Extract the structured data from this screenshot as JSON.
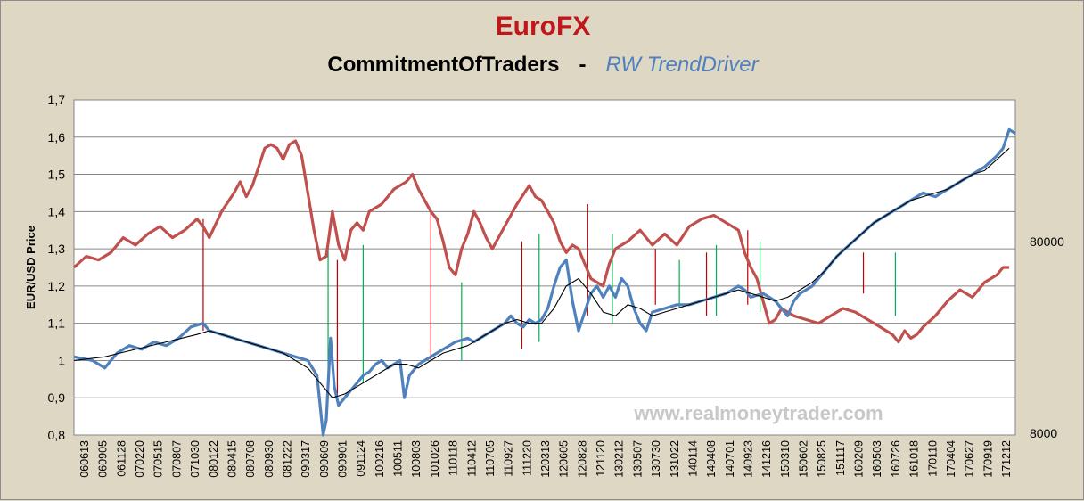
{
  "chart_data": {
    "type": "line",
    "title": "EuroFX",
    "subtitle_left": "CommitmentOfTraders",
    "subtitle_sep": "-",
    "subtitle_right": "RW TrendDriver",
    "ylabel": "EUR/USD Price",
    "watermark": "www.realmoneytrader.com",
    "ylim": [
      0.8,
      1.7
    ],
    "y_ticks": [
      "0,8",
      "0,9",
      "1",
      "1,1",
      "1,2",
      "1,3",
      "1,4",
      "1,5",
      "1,6",
      "1,7"
    ],
    "y2_ticks": [
      "8000",
      "80000"
    ],
    "x_ticks": [
      "060613",
      "060905",
      "061128",
      "070220",
      "070515",
      "070807",
      "071030",
      "080122",
      "080415",
      "080708",
      "080930",
      "081222",
      "090317",
      "090609",
      "090901",
      "091124",
      "100216",
      "100511",
      "100803",
      "101026",
      "110118",
      "110412",
      "110705",
      "110927",
      "111220",
      "120313",
      "120605",
      "120828",
      "121120",
      "130212",
      "130507",
      "130730",
      "131022",
      "140114",
      "140408",
      "140701",
      "140923",
      "141216",
      "150310",
      "150602",
      "150825",
      "151117",
      "160209",
      "160503",
      "160726",
      "161018",
      "170110",
      "170404",
      "170627",
      "170919",
      "171212"
    ],
    "colors": {
      "price": "#4f81bd",
      "cot": "#c0504d",
      "trend": "#000000",
      "sell_signal": "#c00000",
      "buy_signal": "#00b050",
      "grid": "#868686",
      "background": "#ddd7c4"
    },
    "series": [
      {
        "name": "EUR/USD Price",
        "points": [
          [
            0,
            1.01
          ],
          [
            3,
            1.0
          ],
          [
            5,
            0.98
          ],
          [
            7,
            1.02
          ],
          [
            9,
            1.04
          ],
          [
            11,
            1.03
          ],
          [
            13,
            1.05
          ],
          [
            15,
            1.04
          ],
          [
            17,
            1.06
          ],
          [
            19,
            1.09
          ],
          [
            21,
            1.1
          ],
          [
            22,
            1.08
          ],
          [
            24,
            1.07
          ],
          [
            26,
            1.06
          ],
          [
            28,
            1.05
          ],
          [
            30,
            1.04
          ],
          [
            32,
            1.03
          ],
          [
            34,
            1.02
          ],
          [
            36,
            1.01
          ],
          [
            38,
            1.0
          ],
          [
            39.5,
            0.96
          ],
          [
            40.5,
            0.8
          ],
          [
            41,
            0.84
          ],
          [
            41.7,
            1.06
          ],
          [
            42.3,
            0.93
          ],
          [
            43,
            0.88
          ],
          [
            44,
            0.9
          ],
          [
            45,
            0.92
          ],
          [
            46,
            0.94
          ],
          [
            47,
            0.96
          ],
          [
            48,
            0.97
          ],
          [
            49,
            0.99
          ],
          [
            50,
            1.0
          ],
          [
            51,
            0.98
          ],
          [
            52,
            0.99
          ],
          [
            53,
            1.0
          ],
          [
            53.7,
            0.9
          ],
          [
            54.5,
            0.96
          ],
          [
            56,
            0.99
          ],
          [
            58,
            1.01
          ],
          [
            60,
            1.03
          ],
          [
            62,
            1.05
          ],
          [
            64,
            1.06
          ],
          [
            65,
            1.05
          ],
          [
            66,
            1.06
          ],
          [
            68,
            1.08
          ],
          [
            70,
            1.1
          ],
          [
            71,
            1.12
          ],
          [
            72,
            1.1
          ],
          [
            73,
            1.09
          ],
          [
            74,
            1.11
          ],
          [
            75,
            1.1
          ],
          [
            76,
            1.11
          ],
          [
            77,
            1.14
          ],
          [
            78,
            1.2
          ],
          [
            79,
            1.25
          ],
          [
            80,
            1.27
          ],
          [
            81,
            1.16
          ],
          [
            82,
            1.08
          ],
          [
            83,
            1.13
          ],
          [
            84,
            1.18
          ],
          [
            85,
            1.2
          ],
          [
            86,
            1.17
          ],
          [
            87,
            1.2
          ],
          [
            88,
            1.17
          ],
          [
            89,
            1.22
          ],
          [
            90,
            1.2
          ],
          [
            91,
            1.14
          ],
          [
            92,
            1.1
          ],
          [
            93,
            1.08
          ],
          [
            94,
            1.13
          ],
          [
            96,
            1.14
          ],
          [
            98,
            1.15
          ],
          [
            100,
            1.15
          ],
          [
            102,
            1.16
          ],
          [
            104,
            1.17
          ],
          [
            106,
            1.18
          ],
          [
            108,
            1.2
          ],
          [
            109,
            1.19
          ],
          [
            110,
            1.17
          ],
          [
            112,
            1.18
          ],
          [
            114,
            1.16
          ],
          [
            116,
            1.12
          ],
          [
            117,
            1.16
          ],
          [
            118,
            1.18
          ],
          [
            120,
            1.2
          ],
          [
            122,
            1.24
          ],
          [
            124,
            1.28
          ],
          [
            126,
            1.31
          ],
          [
            128,
            1.34
          ],
          [
            130,
            1.37
          ],
          [
            132,
            1.39
          ],
          [
            134,
            1.41
          ],
          [
            136,
            1.43
          ],
          [
            138,
            1.45
          ],
          [
            140,
            1.44
          ],
          [
            142,
            1.46
          ],
          [
            144,
            1.48
          ],
          [
            146,
            1.5
          ],
          [
            148,
            1.52
          ],
          [
            150,
            1.55
          ],
          [
            151,
            1.57
          ],
          [
            152,
            1.62
          ],
          [
            153,
            1.61
          ]
        ]
      },
      {
        "name": "CommitmentOfTraders",
        "points": [
          [
            0,
            1.25
          ],
          [
            2,
            1.28
          ],
          [
            4,
            1.27
          ],
          [
            6,
            1.29
          ],
          [
            8,
            1.33
          ],
          [
            10,
            1.31
          ],
          [
            12,
            1.34
          ],
          [
            14,
            1.36
          ],
          [
            16,
            1.33
          ],
          [
            18,
            1.35
          ],
          [
            20,
            1.38
          ],
          [
            21,
            1.36
          ],
          [
            22,
            1.33
          ],
          [
            24,
            1.4
          ],
          [
            26,
            1.45
          ],
          [
            27,
            1.48
          ],
          [
            28,
            1.44
          ],
          [
            29,
            1.47
          ],
          [
            30,
            1.52
          ],
          [
            31,
            1.57
          ],
          [
            32,
            1.58
          ],
          [
            33,
            1.57
          ],
          [
            34,
            1.54
          ],
          [
            35,
            1.58
          ],
          [
            36,
            1.59
          ],
          [
            37,
            1.55
          ],
          [
            38,
            1.45
          ],
          [
            39,
            1.35
          ],
          [
            40,
            1.27
          ],
          [
            41,
            1.28
          ],
          [
            42,
            1.4
          ],
          [
            43,
            1.31
          ],
          [
            44,
            1.27
          ],
          [
            45,
            1.35
          ],
          [
            46,
            1.37
          ],
          [
            47,
            1.35
          ],
          [
            48,
            1.4
          ],
          [
            50,
            1.42
          ],
          [
            52,
            1.46
          ],
          [
            54,
            1.48
          ],
          [
            55,
            1.5
          ],
          [
            56,
            1.46
          ],
          [
            58,
            1.4
          ],
          [
            59,
            1.38
          ],
          [
            60,
            1.32
          ],
          [
            61,
            1.25
          ],
          [
            62,
            1.23
          ],
          [
            63,
            1.3
          ],
          [
            64,
            1.34
          ],
          [
            65,
            1.4
          ],
          [
            66,
            1.37
          ],
          [
            67,
            1.33
          ],
          [
            68,
            1.3
          ],
          [
            70,
            1.36
          ],
          [
            72,
            1.42
          ],
          [
            74,
            1.47
          ],
          [
            75,
            1.44
          ],
          [
            76,
            1.43
          ],
          [
            77,
            1.4
          ],
          [
            78,
            1.37
          ],
          [
            79,
            1.32
          ],
          [
            80,
            1.29
          ],
          [
            81,
            1.31
          ],
          [
            82,
            1.3
          ],
          [
            83,
            1.26
          ],
          [
            84,
            1.22
          ],
          [
            86,
            1.2
          ],
          [
            87,
            1.26
          ],
          [
            88,
            1.3
          ],
          [
            90,
            1.32
          ],
          [
            92,
            1.35
          ],
          [
            93,
            1.33
          ],
          [
            94,
            1.31
          ],
          [
            96,
            1.34
          ],
          [
            98,
            1.31
          ],
          [
            100,
            1.36
          ],
          [
            102,
            1.38
          ],
          [
            104,
            1.39
          ],
          [
            106,
            1.37
          ],
          [
            108,
            1.35
          ],
          [
            109,
            1.29
          ],
          [
            110,
            1.25
          ],
          [
            111,
            1.22
          ],
          [
            112,
            1.16
          ],
          [
            113,
            1.1
          ],
          [
            114,
            1.11
          ],
          [
            115,
            1.14
          ],
          [
            117,
            1.12
          ],
          [
            119,
            1.11
          ],
          [
            121,
            1.1
          ],
          [
            123,
            1.12
          ],
          [
            125,
            1.14
          ],
          [
            127,
            1.13
          ],
          [
            129,
            1.11
          ],
          [
            131,
            1.09
          ],
          [
            133,
            1.07
          ],
          [
            134,
            1.05
          ],
          [
            135,
            1.08
          ],
          [
            136,
            1.06
          ],
          [
            137,
            1.07
          ],
          [
            138,
            1.09
          ],
          [
            140,
            1.12
          ],
          [
            142,
            1.16
          ],
          [
            144,
            1.19
          ],
          [
            146,
            1.17
          ],
          [
            148,
            1.21
          ],
          [
            150,
            1.23
          ],
          [
            151,
            1.25
          ],
          [
            152,
            1.25
          ]
        ]
      },
      {
        "name": "RW TrendDriver",
        "points": [
          [
            0,
            1.0
          ],
          [
            5,
            1.01
          ],
          [
            10,
            1.03
          ],
          [
            15,
            1.05
          ],
          [
            20,
            1.07
          ],
          [
            22,
            1.08
          ],
          [
            26,
            1.06
          ],
          [
            30,
            1.04
          ],
          [
            34,
            1.02
          ],
          [
            38,
            0.98
          ],
          [
            40,
            0.94
          ],
          [
            42,
            0.9
          ],
          [
            44,
            0.91
          ],
          [
            46,
            0.93
          ],
          [
            48,
            0.95
          ],
          [
            50,
            0.97
          ],
          [
            52,
            0.99
          ],
          [
            54,
            0.99
          ],
          [
            56,
            0.98
          ],
          [
            58,
            1.0
          ],
          [
            60,
            1.02
          ],
          [
            62,
            1.03
          ],
          [
            64,
            1.04
          ],
          [
            66,
            1.06
          ],
          [
            68,
            1.08
          ],
          [
            70,
            1.1
          ],
          [
            72,
            1.11
          ],
          [
            74,
            1.1
          ],
          [
            76,
            1.1
          ],
          [
            78,
            1.14
          ],
          [
            80,
            1.2
          ],
          [
            82,
            1.22
          ],
          [
            84,
            1.18
          ],
          [
            86,
            1.13
          ],
          [
            88,
            1.12
          ],
          [
            90,
            1.15
          ],
          [
            92,
            1.14
          ],
          [
            94,
            1.12
          ],
          [
            96,
            1.13
          ],
          [
            98,
            1.14
          ],
          [
            100,
            1.15
          ],
          [
            102,
            1.16
          ],
          [
            104,
            1.17
          ],
          [
            106,
            1.18
          ],
          [
            108,
            1.19
          ],
          [
            110,
            1.18
          ],
          [
            112,
            1.17
          ],
          [
            114,
            1.16
          ],
          [
            116,
            1.17
          ],
          [
            118,
            1.19
          ],
          [
            120,
            1.21
          ],
          [
            122,
            1.24
          ],
          [
            124,
            1.28
          ],
          [
            126,
            1.31
          ],
          [
            128,
            1.34
          ],
          [
            130,
            1.37
          ],
          [
            132,
            1.39
          ],
          [
            134,
            1.41
          ],
          [
            136,
            1.43
          ],
          [
            138,
            1.44
          ],
          [
            140,
            1.45
          ],
          [
            142,
            1.46
          ],
          [
            144,
            1.48
          ],
          [
            146,
            1.5
          ],
          [
            148,
            1.51
          ],
          [
            150,
            1.54
          ],
          [
            152,
            1.57
          ]
        ]
      }
    ],
    "signals": [
      {
        "type": "sell",
        "x": 21,
        "y1": 1.08,
        "y2": 1.38
      },
      {
        "type": "buy",
        "x": 41.3,
        "y1": 0.9,
        "y2": 1.3
      },
      {
        "type": "sell",
        "x": 42.8,
        "y1": 0.9,
        "y2": 1.27
      },
      {
        "type": "buy",
        "x": 47,
        "y1": 0.94,
        "y2": 1.31
      },
      {
        "type": "sell",
        "x": 58,
        "y1": 1.0,
        "y2": 1.4
      },
      {
        "type": "buy",
        "x": 63,
        "y1": 1.0,
        "y2": 1.21
      },
      {
        "type": "sell",
        "x": 72.8,
        "y1": 1.03,
        "y2": 1.32
      },
      {
        "type": "buy",
        "x": 75.6,
        "y1": 1.05,
        "y2": 1.34
      },
      {
        "type": "sell",
        "x": 83.5,
        "y1": 1.12,
        "y2": 1.42
      },
      {
        "type": "buy",
        "x": 87.5,
        "y1": 1.1,
        "y2": 1.34
      },
      {
        "type": "sell",
        "x": 94.5,
        "y1": 1.15,
        "y2": 1.3
      },
      {
        "type": "buy",
        "x": 98.4,
        "y1": 1.14,
        "y2": 1.27
      },
      {
        "type": "sell",
        "x": 102.8,
        "y1": 1.12,
        "y2": 1.29
      },
      {
        "type": "buy",
        "x": 104.4,
        "y1": 1.12,
        "y2": 1.31
      },
      {
        "type": "sell",
        "x": 109.5,
        "y1": 1.15,
        "y2": 1.35
      },
      {
        "type": "buy",
        "x": 111.5,
        "y1": 1.13,
        "y2": 1.32
      },
      {
        "type": "sell",
        "x": 128.3,
        "y1": 1.18,
        "y2": 1.29
      },
      {
        "type": "buy",
        "x": 133.5,
        "y1": 1.12,
        "y2": 1.29
      }
    ]
  }
}
